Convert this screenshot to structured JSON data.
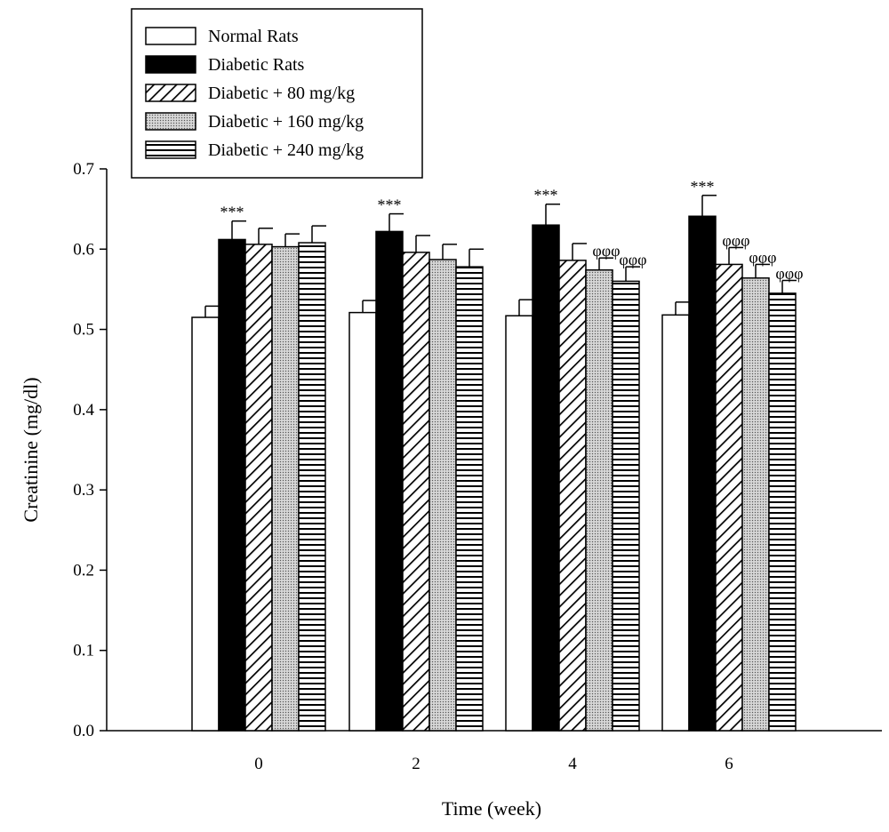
{
  "chart_data": {
    "type": "bar",
    "title": "",
    "xlabel": "Time (week)",
    "ylabel": "Creatinine (mg/dl)",
    "ylim": [
      0,
      0.7
    ],
    "yticks": [
      "0.0",
      "0.1",
      "0.2",
      "0.3",
      "0.4",
      "0.5",
      "0.6",
      "0.7"
    ],
    "categories": [
      "0",
      "2",
      "4",
      "6"
    ],
    "grid": false,
    "legend_position": "top-left",
    "series": [
      {
        "name": "Normal Rats",
        "pattern": "white",
        "values": [
          0.515,
          0.521,
          0.517,
          0.518
        ],
        "errors": [
          0.014,
          0.015,
          0.02,
          0.016
        ],
        "annotations": [
          "",
          "",
          "",
          ""
        ]
      },
      {
        "name": "Diabetic Rats",
        "pattern": "black",
        "values": [
          0.612,
          0.622,
          0.63,
          0.641
        ],
        "errors": [
          0.023,
          0.022,
          0.026,
          0.026
        ],
        "annotations": [
          "***",
          "***",
          "***",
          "***"
        ]
      },
      {
        "name": "Diabetic + 80 mg/kg",
        "pattern": "diagonal",
        "values": [
          0.606,
          0.596,
          0.586,
          0.581
        ],
        "errors": [
          0.02,
          0.021,
          0.021,
          0.021
        ],
        "annotations": [
          "",
          "",
          "",
          "φφφ"
        ]
      },
      {
        "name": "Diabetic + 160 mg/kg",
        "pattern": "dots",
        "values": [
          0.603,
          0.587,
          0.574,
          0.564
        ],
        "errors": [
          0.016,
          0.019,
          0.015,
          0.017
        ],
        "annotations": [
          "",
          "",
          "φφφ",
          "φφφ"
        ]
      },
      {
        "name": "Diabetic + 240 mg/kg",
        "pattern": "horizontal",
        "values": [
          0.608,
          0.578,
          0.56,
          0.545
        ],
        "errors": [
          0.021,
          0.022,
          0.018,
          0.016
        ],
        "annotations": [
          "",
          "",
          "φφφ",
          "φφφ"
        ]
      }
    ]
  }
}
